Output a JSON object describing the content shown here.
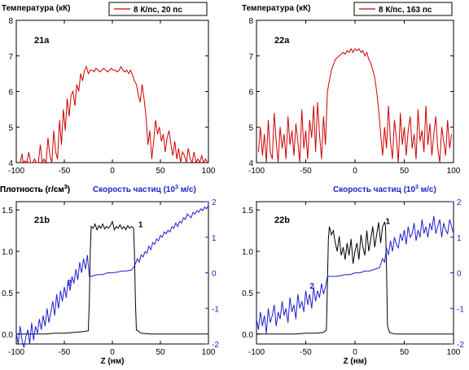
{
  "chart_data": [
    {
      "type": "line",
      "panel_label": "21a",
      "title": "Температура (кК)",
      "legend": "8 К/пс, 20 пс",
      "legend_position": "top-right",
      "xlim": [
        -100,
        100
      ],
      "ylim": [
        4,
        8
      ],
      "x_ticks": [
        -100,
        -50,
        0,
        50,
        100
      ],
      "y_ticks": [
        4,
        5,
        6,
        7,
        8
      ],
      "grid": false,
      "series": [
        {
          "name": "8 К/пс, 20 пс",
          "color": "#cc0000",
          "x": [
            -96,
            -94,
            -93,
            -91,
            -89,
            -87,
            -85,
            -83,
            -81,
            -79,
            -77,
            -75,
            -73,
            -71,
            -69,
            -67,
            -65,
            -63,
            -61,
            -59,
            -57,
            -55,
            -53,
            -51,
            -49,
            -47,
            -45,
            -43,
            -41,
            -39,
            -37,
            -35,
            -33,
            -31,
            -29,
            -27,
            -25,
            -23,
            -21,
            -19,
            -17,
            -15,
            -13,
            -11,
            -9,
            -7,
            -5,
            -3,
            -1,
            1,
            3,
            5,
            7,
            9,
            11,
            13,
            15,
            17,
            19,
            21,
            23,
            25,
            27,
            29,
            31,
            33,
            35,
            37,
            39,
            41,
            43,
            45,
            47,
            49,
            51,
            53,
            55,
            57,
            59,
            61,
            63,
            65,
            67,
            69,
            71,
            73,
            75,
            77,
            79,
            81,
            83,
            85,
            87,
            89,
            91,
            93,
            95,
            97,
            99
          ],
          "y": [
            4.0,
            4.25,
            4.0,
            4.05,
            4.0,
            4.3,
            4.0,
            4.0,
            4.1,
            4.0,
            4.0,
            4.5,
            4.0,
            4.1,
            4.0,
            4.7,
            4.2,
            4.0,
            4.9,
            4.3,
            4.1,
            5.2,
            4.5,
            5.5,
            4.9,
            5.8,
            5.3,
            5.9,
            6.0,
            5.6,
            6.2,
            6.0,
            6.5,
            6.3,
            6.6,
            6.7,
            6.5,
            6.6,
            6.6,
            6.55,
            6.65,
            6.6,
            6.55,
            6.6,
            6.65,
            6.6,
            6.55,
            6.6,
            6.65,
            6.6,
            6.6,
            6.55,
            6.6,
            6.7,
            6.6,
            6.55,
            6.6,
            6.5,
            6.6,
            6.45,
            6.3,
            6.2,
            5.9,
            5.7,
            6.2,
            5.8,
            5.3,
            4.5,
            4.9,
            4.1,
            4.6,
            5.2,
            4.8,
            5.0,
            4.6,
            4.8,
            4.3,
            4.7,
            4.9,
            4.5,
            4.2,
            4.6,
            4.1,
            4.4,
            4.0,
            4.3,
            4.2,
            4.0,
            4.4,
            4.1,
            4.0,
            4.3,
            4.0,
            4.1,
            4.0,
            4.2,
            4.0,
            4.1,
            4.0
          ]
        }
      ]
    },
    {
      "type": "line",
      "panel_label": "22a",
      "title": "Температура (кК)",
      "legend": "8 К/пс, 163 пс",
      "legend_position": "top-right",
      "xlim": [
        -100,
        100
      ],
      "ylim": [
        4,
        8
      ],
      "x_ticks": [
        -100,
        -50,
        0,
        50,
        100
      ],
      "y_ticks": [
        4,
        5,
        6,
        7,
        8
      ],
      "grid": false,
      "series": [
        {
          "name": "8 К/пс, 163 пс",
          "color": "#cc0000",
          "x": [
            -98,
            -96,
            -94,
            -92,
            -90,
            -88,
            -86,
            -84,
            -82,
            -80,
            -78,
            -76,
            -74,
            -72,
            -70,
            -68,
            -66,
            -64,
            -62,
            -60,
            -58,
            -56,
            -54,
            -52,
            -50,
            -48,
            -46,
            -44,
            -42,
            -40,
            -38,
            -36,
            -34,
            -32,
            -30,
            -28,
            -26,
            -24,
            -22,
            -20,
            -18,
            -16,
            -14,
            -12,
            -10,
            -8,
            -6,
            -4,
            -2,
            0,
            2,
            4,
            6,
            8,
            10,
            12,
            14,
            16,
            18,
            20,
            22,
            24,
            26,
            28,
            30,
            32,
            34,
            36,
            38,
            40,
            42,
            44,
            46,
            48,
            50,
            52,
            54,
            56,
            58,
            60,
            62,
            64,
            66,
            68,
            70,
            72,
            74,
            76,
            78,
            80,
            82,
            84,
            86,
            88,
            90,
            92,
            94,
            96,
            98
          ],
          "y": [
            4.3,
            5.0,
            4.2,
            4.8,
            4.0,
            5.2,
            4.3,
            4.1,
            5.4,
            4.6,
            4.0,
            5.0,
            4.4,
            4.8,
            4.1,
            5.3,
            4.5,
            4.9,
            4.2,
            5.1,
            4.6,
            4.0,
            5.5,
            4.4,
            4.9,
            4.1,
            5.2,
            4.7,
            5.6,
            4.3,
            5.7,
            4.8,
            4.1,
            5.3,
            4.5,
            6.0,
            6.3,
            6.6,
            6.75,
            6.9,
            6.95,
            7.0,
            7.05,
            7.1,
            7.05,
            7.15,
            7.1,
            7.2,
            7.1,
            7.2,
            7.15,
            7.2,
            7.1,
            7.15,
            7.0,
            7.1,
            6.9,
            6.8,
            6.6,
            6.4,
            6.0,
            5.5,
            4.8,
            4.2,
            5.0,
            4.4,
            5.6,
            4.6,
            4.1,
            5.2,
            4.7,
            4.0,
            5.4,
            4.5,
            5.0,
            4.2,
            4.9,
            5.3,
            4.4,
            4.8,
            4.1,
            5.5,
            4.6,
            4.9,
            4.3,
            5.6,
            4.5,
            5.1,
            4.2,
            4.8,
            5.3,
            4.4,
            4.0,
            5.0,
            4.6,
            4.2,
            5.2,
            4.4,
            4.8
          ]
        }
      ]
    },
    {
      "type": "line",
      "panel_label": "21b",
      "title_left": "Плотность (г/см",
      "title_left_sup": "3",
      "title_left_end": ")",
      "title_right": "Скорость частиц (10",
      "title_right_sup": "3",
      "title_right_end": " м/с)",
      "xlabel": "Z (нм)",
      "xlim": [
        -100,
        100
      ],
      "ylim_left": [
        -0.12,
        1.6
      ],
      "ylim_right": [
        -2,
        2
      ],
      "x_ticks": [
        -100,
        -50,
        0,
        50,
        100
      ],
      "y_ticks_left": [
        0.0,
        0.5,
        1.0,
        1.5
      ],
      "y_tick_labels_left": [
        "0.0",
        "0.5",
        "1.0",
        "1.5"
      ],
      "y_ticks_right": [
        -2,
        -1,
        0,
        1,
        2
      ],
      "grid": false,
      "curve_labels": [
        {
          "text": "1",
          "x": 27,
          "y_left": 1.29,
          "color": "#000000"
        },
        {
          "text": "2",
          "x": -47,
          "y_right": -0.35,
          "color": "#1f1fcc"
        }
      ],
      "series": [
        {
          "name": "1",
          "axis": "left",
          "color": "#000000",
          "x": [
            -100,
            -90,
            -80,
            -70,
            -60,
            -50,
            -40,
            -30,
            -25,
            -24,
            -23,
            -22,
            -20,
            -18,
            -16,
            -14,
            -12,
            -10,
            -8,
            -6,
            -4,
            -2,
            0,
            2,
            4,
            6,
            8,
            10,
            12,
            14,
            16,
            18,
            20,
            22,
            23,
            24,
            25,
            30,
            40,
            50,
            60,
            70,
            80,
            90,
            100
          ],
          "y": [
            0.0,
            0.0,
            0.0,
            0.0,
            0.01,
            0.01,
            0.02,
            0.03,
            0.04,
            0.4,
            1.0,
            1.3,
            1.28,
            1.33,
            1.26,
            1.31,
            1.28,
            1.33,
            1.27,
            1.3,
            1.28,
            1.31,
            1.36,
            1.26,
            1.3,
            1.28,
            1.32,
            1.27,
            1.3,
            1.26,
            1.31,
            1.28,
            1.3,
            1.28,
            1.0,
            0.4,
            0.05,
            0.01,
            0.0,
            0.0,
            0.0,
            0.0,
            0.0,
            0.0,
            0.0
          ]
        },
        {
          "name": "2",
          "axis": "right",
          "color": "#1f1fcc",
          "x": [
            -100,
            -98,
            -96,
            -94,
            -92,
            -90,
            -88,
            -86,
            -84,
            -82,
            -80,
            -78,
            -76,
            -74,
            -72,
            -70,
            -68,
            -66,
            -64,
            -62,
            -60,
            -58,
            -56,
            -54,
            -52,
            -50,
            -48,
            -46,
            -44,
            -42,
            -40,
            -38,
            -36,
            -34,
            -32,
            -30,
            -28,
            -26,
            -24,
            -22,
            -20,
            -15,
            -10,
            -5,
            0,
            5,
            10,
            15,
            20,
            22,
            24,
            26,
            28,
            30,
            32,
            34,
            36,
            38,
            40,
            42,
            44,
            46,
            48,
            50,
            52,
            54,
            56,
            58,
            60,
            62,
            64,
            66,
            68,
            70,
            72,
            74,
            76,
            78,
            80,
            82,
            84,
            86,
            88,
            90,
            92,
            94,
            96,
            98,
            100
          ],
          "y": [
            -1.7,
            -2.0,
            -1.5,
            -1.9,
            -2.1,
            -1.8,
            -1.6,
            -2.0,
            -1.4,
            -1.9,
            -1.5,
            -1.7,
            -1.3,
            -1.6,
            -1.2,
            -1.5,
            -1.0,
            -1.4,
            -1.1,
            -0.8,
            -1.2,
            -0.6,
            -1.0,
            -0.5,
            -0.8,
            -0.4,
            -0.7,
            -0.2,
            -0.5,
            -0.1,
            -0.3,
            0.1,
            -0.2,
            0.3,
            0.0,
            0.4,
            0.1,
            0.5,
            -0.1,
            -0.1,
            -0.08,
            -0.05,
            -0.05,
            0.0,
            0.0,
            0.02,
            0.05,
            0.05,
            0.08,
            0.15,
            0.25,
            0.4,
            0.3,
            0.5,
            0.45,
            0.6,
            0.55,
            0.75,
            0.65,
            0.85,
            0.8,
            0.95,
            0.9,
            1.05,
            1.0,
            1.15,
            1.1,
            1.2,
            1.15,
            1.3,
            1.25,
            1.4,
            1.3,
            1.45,
            1.4,
            1.55,
            1.5,
            1.65,
            1.6,
            1.55,
            1.7,
            1.65,
            1.75,
            1.7,
            1.8,
            1.75,
            1.85,
            1.8,
            1.9
          ]
        }
      ]
    },
    {
      "type": "line",
      "panel_label": "22b",
      "title_left": "Плотность (г/см",
      "title_left_sup": "3",
      "title_left_end": ")",
      "title_right": "Скорость частиц (10",
      "title_right_sup": "3",
      "title_right_end": " м/с)",
      "xlabel": "Z (нм)",
      "xlim": [
        -100,
        100
      ],
      "ylim_left": [
        -0.12,
        1.6
      ],
      "ylim_right": [
        -2,
        2
      ],
      "x_ticks": [
        -100,
        -50,
        0,
        50,
        100
      ],
      "y_ticks_left": [
        0.0,
        0.5,
        1.0,
        1.5
      ],
      "y_tick_labels_left": [
        "0.0",
        "0.5",
        "1.0",
        "1.5"
      ],
      "y_ticks_right": [
        -2,
        -1,
        0,
        1,
        2
      ],
      "grid": false,
      "curve_labels": [
        {
          "text": "1",
          "x": 31,
          "y_left": 1.33,
          "color": "#000000"
        },
        {
          "text": "2",
          "x": -46,
          "y_right": -0.45,
          "color": "#1f1fcc"
        }
      ],
      "series": [
        {
          "name": "1",
          "axis": "left",
          "color": "#000000",
          "x": [
            -100,
            -90,
            -80,
            -70,
            -60,
            -50,
            -40,
            -32,
            -29,
            -28,
            -27,
            -26,
            -24,
            -22,
            -20,
            -18,
            -16,
            -14,
            -12,
            -10,
            -8,
            -6,
            -4,
            -2,
            0,
            2,
            4,
            6,
            8,
            10,
            12,
            14,
            16,
            18,
            20,
            22,
            24,
            26,
            28,
            30,
            31,
            32,
            33,
            35,
            40,
            50,
            60,
            70,
            80,
            90,
            100
          ],
          "y": [
            0.0,
            0.0,
            0.0,
            0.0,
            0.0,
            0.01,
            0.01,
            0.02,
            0.05,
            0.6,
            1.15,
            1.3,
            1.2,
            1.25,
            1.1,
            1.0,
            1.18,
            0.95,
            1.05,
            0.9,
            1.1,
            0.95,
            1.15,
            0.85,
            1.0,
            1.1,
            0.9,
            1.2,
            1.05,
            0.95,
            1.25,
            1.0,
            1.15,
            1.3,
            1.05,
            1.2,
            1.35,
            1.1,
            1.3,
            1.35,
            1.3,
            0.8,
            0.1,
            0.02,
            0.0,
            0.0,
            0.0,
            0.0,
            0.0,
            0.0,
            0.0
          ]
        },
        {
          "name": "2",
          "axis": "right",
          "color": "#1f1fcc",
          "x": [
            -100,
            -98,
            -96,
            -94,
            -92,
            -90,
            -88,
            -86,
            -84,
            -82,
            -80,
            -78,
            -76,
            -74,
            -72,
            -70,
            -68,
            -66,
            -64,
            -62,
            -60,
            -58,
            -56,
            -54,
            -52,
            -50,
            -48,
            -46,
            -44,
            -42,
            -40,
            -38,
            -36,
            -34,
            -32,
            -30,
            -28,
            -25,
            -20,
            -15,
            -10,
            -5,
            0,
            5,
            10,
            15,
            20,
            25,
            28,
            30,
            32,
            34,
            36,
            38,
            40,
            42,
            44,
            46,
            48,
            50,
            52,
            54,
            56,
            58,
            60,
            62,
            64,
            66,
            68,
            70,
            72,
            74,
            76,
            78,
            80,
            82,
            84,
            86,
            88,
            90,
            92,
            94,
            96,
            98,
            100
          ],
          "y": [
            -1.3,
            -1.6,
            -1.1,
            -1.5,
            -1.2,
            -1.7,
            -1.0,
            -1.4,
            -1.2,
            -0.9,
            -1.5,
            -1.1,
            -1.3,
            -0.8,
            -1.2,
            -1.0,
            -1.4,
            -0.7,
            -1.1,
            -0.9,
            -1.3,
            -0.6,
            -1.0,
            -0.8,
            -1.1,
            -0.5,
            -0.9,
            -0.6,
            -1.0,
            -0.4,
            -0.8,
            -0.5,
            -0.7,
            -0.3,
            -0.6,
            -0.4,
            -0.1,
            -0.1,
            -0.1,
            -0.08,
            -0.05,
            -0.05,
            0.0,
            0.0,
            0.05,
            0.05,
            0.1,
            0.15,
            0.4,
            0.3,
            0.7,
            0.5,
            0.9,
            0.6,
            1.0,
            0.8,
            0.7,
            1.1,
            0.9,
            1.2,
            0.8,
            1.3,
            1.0,
            1.1,
            1.4,
            0.9,
            1.2,
            1.0,
            1.5,
            1.1,
            1.3,
            1.0,
            1.4,
            1.2,
            1.6,
            1.1,
            1.3,
            1.5,
            1.0,
            1.4,
            1.2,
            1.1,
            1.5,
            1.3,
            1.1
          ]
        }
      ]
    }
  ]
}
